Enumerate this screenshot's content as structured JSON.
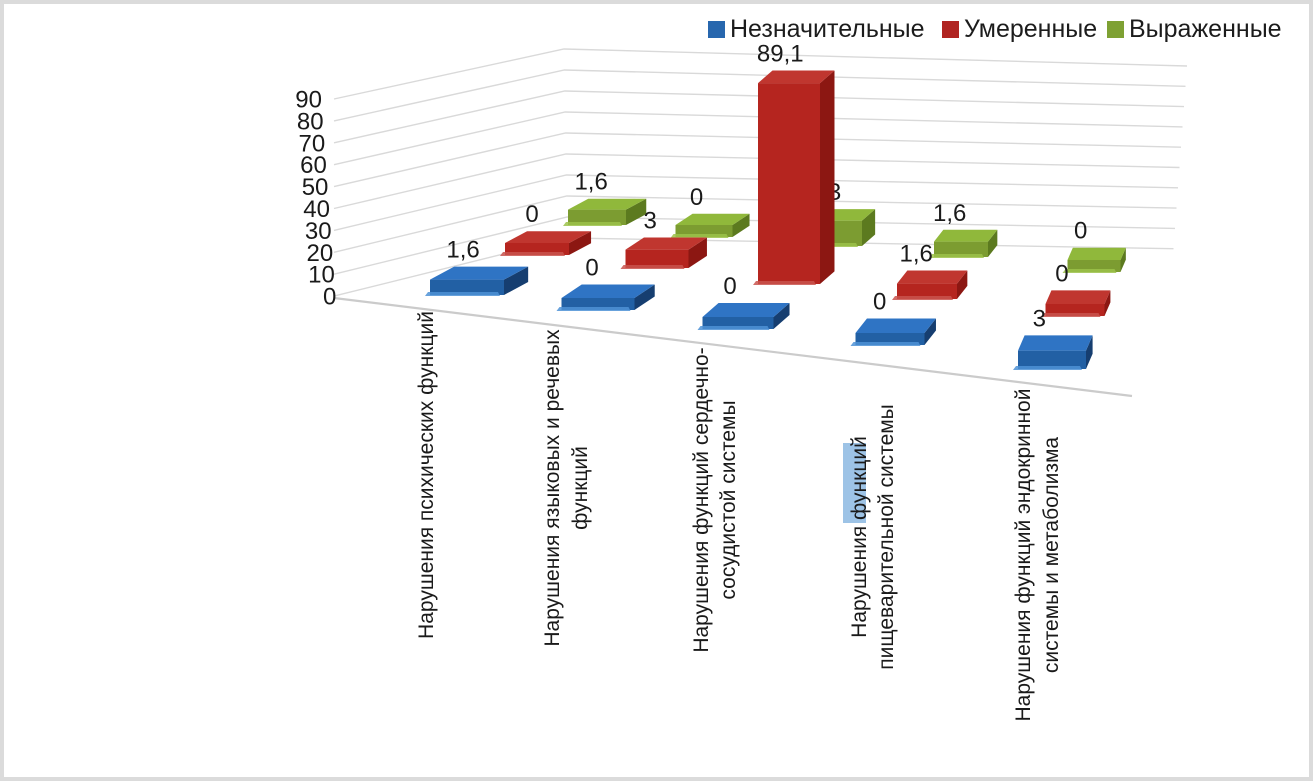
{
  "frame": {
    "border_color": "#DBDBDB",
    "background": "#FFFFFF"
  },
  "chart_data": {
    "type": "bar",
    "style": "3d-clustered-column",
    "title": "",
    "legend_position": "top",
    "grid": true,
    "value_axis": {
      "min": 0,
      "max": 90,
      "step": 10,
      "ticks": [
        90,
        80,
        70,
        60,
        50,
        40,
        30,
        20,
        10,
        0
      ]
    },
    "categories": [
      {
        "lines": [
          "Нарушения психических функций"
        ]
      },
      {
        "lines": [
          "Нарушения языковых и речевых",
          "функций"
        ]
      },
      {
        "lines": [
          "Нарушения функций сердечно-",
          "сосудистой системы"
        ]
      },
      {
        "lines": [
          "Нарушения функций",
          "пищеварительной системы"
        ],
        "highlight": {
          "line": 0,
          "word": "функций",
          "color": "#9DC3E6"
        }
      },
      {
        "lines": [
          "Нарушения функций эндокринной",
          "системы и метаболизма"
        ]
      }
    ],
    "series": [
      {
        "name": "Незначительные",
        "values": [
          1.6,
          0,
          0,
          0,
          3
        ],
        "labels": [
          "1,6",
          "0",
          "0",
          "0",
          "3"
        ],
        "colors": {
          "legend": "#2767AE",
          "front": "#2260A4",
          "top": "#2F74C4",
          "side": "#163E70",
          "bevel": "#4E92D6"
        }
      },
      {
        "name": "Умеренные",
        "values": [
          0,
          3,
          89.1,
          1.6,
          0
        ],
        "labels": [
          "0",
          "3",
          "89,1",
          "1,6",
          "0"
        ],
        "colors": {
          "legend": "#B02421",
          "front": "#B5251F",
          "top": "#C0362F",
          "side": "#8C1712",
          "bevel": "#C9534D"
        }
      },
      {
        "name": "Выраженные",
        "values": [
          1.6,
          0,
          6.3,
          1.6,
          0
        ],
        "labels": [
          "1,6",
          "0",
          "6,3",
          "1,6",
          "0"
        ],
        "colors": {
          "legend": "#7EA133",
          "front": "#7C9C31",
          "top": "#90B83B",
          "side": "#5C7A1F",
          "bevel": "#9CC24A"
        }
      }
    ]
  }
}
